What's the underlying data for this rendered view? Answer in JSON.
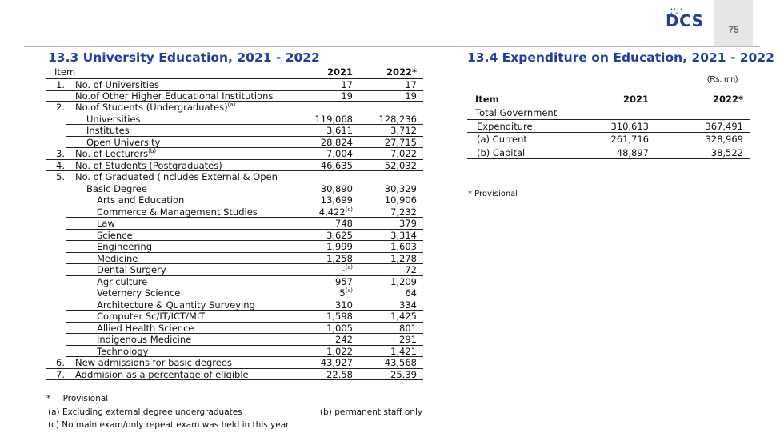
{
  "header": {
    "logo_text": "DCS",
    "page_number": "75"
  },
  "left": {
    "title": "13.3 University Education, 2021 - 2022",
    "headers": {
      "item": "Item",
      "col1": "2021",
      "col2": "2022*"
    },
    "rows": [
      {
        "num": "1.",
        "label": "No. of Universities",
        "sup": "",
        "v1": "17",
        "v2": "17",
        "indent": 0,
        "ul": true
      },
      {
        "num": "",
        "label": "No.of Other Higher Educational Institutions",
        "sup": "",
        "v1": "19",
        "v2": "19",
        "indent": 0,
        "ul": true
      },
      {
        "num": "2.",
        "label": "No.of Students (Undergraduates)",
        "sup": "(a)",
        "v1": "",
        "v2": "",
        "indent": 0,
        "ul": false
      },
      {
        "num": "",
        "label": "Universities",
        "sup": "",
        "v1": "119,068",
        "v2": "128,236",
        "indent": 1,
        "ul": true
      },
      {
        "num": "",
        "label": "Institutes",
        "sup": "",
        "v1": "3,611",
        "v2": "3,712",
        "indent": 1,
        "ul": true
      },
      {
        "num": "",
        "label": "Open University",
        "sup": "",
        "v1": "28,824",
        "v2": "27,715",
        "indent": 1,
        "ul": true
      },
      {
        "num": "3.",
        "label": "No. of Lecturers",
        "sup": "(b)",
        "v1": "7,004",
        "v2": "7,022",
        "indent": 0,
        "ul": true
      },
      {
        "num": "4.",
        "label": "No. of Students (Postgraduates)",
        "sup": "",
        "v1": "46,635",
        "v2": "52,032",
        "indent": 0,
        "ul": true
      },
      {
        "num": "5.",
        "label": "No. of Graduated (includes External & Open",
        "sup": "",
        "v1": "",
        "v2": "",
        "indent": 0,
        "ul": false
      },
      {
        "num": "",
        "label": "Basic Degree",
        "sup": "",
        "v1": "30,890",
        "v2": "30,329",
        "indent": 1,
        "ul": true
      },
      {
        "num": "",
        "label": "Arts and Education",
        "sup": "",
        "v1": "13,699",
        "v2": "10,906",
        "indent": 2,
        "ul": true
      },
      {
        "num": "",
        "label": "Commerce & Management Studies",
        "sup": "",
        "v1": "4,422",
        "v1sup": "(c)",
        "v2": "7,232",
        "indent": 2,
        "ul": true
      },
      {
        "num": "",
        "label": "Law",
        "sup": "",
        "v1": "748",
        "v2": "379",
        "indent": 2,
        "ul": true
      },
      {
        "num": "",
        "label": "Science",
        "sup": "",
        "v1": "3,625",
        "v2": "3,314",
        "indent": 2,
        "ul": true
      },
      {
        "num": "",
        "label": "Engineering",
        "sup": "",
        "v1": "1,999",
        "v2": "1,603",
        "indent": 2,
        "ul": true
      },
      {
        "num": "",
        "label": "Medicine",
        "sup": "",
        "v1": "1,258",
        "v2": "1,278",
        "indent": 2,
        "ul": true
      },
      {
        "num": "",
        "label": "Dental Surgery",
        "sup": "",
        "v1": "-",
        "v1sup": "(c)",
        "v2": "72",
        "indent": 2,
        "ul": true
      },
      {
        "num": "",
        "label": "Agriculture",
        "sup": "",
        "v1": "957",
        "v2": "1,209",
        "indent": 2,
        "ul": true
      },
      {
        "num": "",
        "label": "Veternery Science",
        "sup": "",
        "v1": "5",
        "v1sup": "(c)",
        "v2": "64",
        "indent": 2,
        "ul": true
      },
      {
        "num": "",
        "label": "Architecture & Quantity Surveying",
        "sup": "",
        "v1": "310",
        "v2": "334",
        "indent": 2,
        "ul": true
      },
      {
        "num": "",
        "label": "Computer Sc/IT/ICT/MIT",
        "sup": "",
        "v1": "1,598",
        "v2": "1,425",
        "indent": 2,
        "ul": true
      },
      {
        "num": "",
        "label": "Allied Health Science",
        "sup": "",
        "v1": "1,005",
        "v2": "801",
        "indent": 2,
        "ul": true
      },
      {
        "num": "",
        "label": "Indigenous Medicine",
        "sup": "",
        "v1": "242",
        "v2": "291",
        "indent": 2,
        "ul": true
      },
      {
        "num": "",
        "label": "Technology",
        "sup": "",
        "v1": "1,022",
        "v2": "1,421",
        "indent": 2,
        "ul": true
      },
      {
        "num": "6.",
        "label": "New admissions for basic degrees",
        "sup": "",
        "v1": "43,927",
        "v2": "43,568",
        "indent": 0,
        "ul": true
      },
      {
        "num": "7.",
        "label": "Addmision as a percentage of eligible",
        "sup": "",
        "v1": "22.58",
        "v2": "25.39",
        "indent": 0,
        "ul": true
      }
    ],
    "notes": {
      "provisional_mark": "*",
      "provisional": "Provisional",
      "a": "(a) Excluding external degree undergraduates",
      "b": "(b) permanent staff only",
      "c": "(c) No main exam/only repeat exam was held in this year."
    }
  },
  "right": {
    "title": "13.4 Expenditure on Education, 2021 - 2022",
    "unit": "(Rs. mn)",
    "headers": {
      "item": "Item",
      "col1": "2021",
      "col2": "2022*"
    },
    "rows": [
      {
        "label": "Total Government",
        "v1": "",
        "v2": ""
      },
      {
        "label": "Expenditure",
        "v1": "310,613",
        "v2": "367,491"
      },
      {
        "label": "(a)  Current",
        "v1": "261,716",
        "v2": "328,969"
      },
      {
        "label": "(b)  Capital",
        "v1": "48,897",
        "v2": "38,522"
      }
    ],
    "note": "* Provisional"
  }
}
